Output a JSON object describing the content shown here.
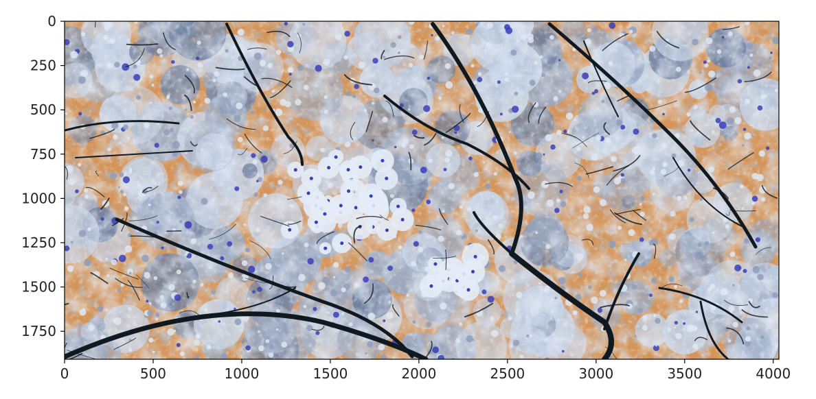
{
  "chart_data": {
    "type": "image",
    "title": "",
    "xlabel": "",
    "ylabel": "",
    "xlim": [
      0,
      4032
    ],
    "ylim": [
      1908,
      0
    ],
    "x_ticks": [
      0,
      500,
      1000,
      1500,
      2000,
      2500,
      3000,
      3500,
      4000
    ],
    "y_ticks": [
      0,
      250,
      500,
      750,
      1000,
      1250,
      1500,
      1750
    ],
    "x_tick_labels": [
      "0",
      "500",
      "1000",
      "1500",
      "2000",
      "2500",
      "3000",
      "3500",
      "4000"
    ],
    "y_tick_labels": [
      "0",
      "250",
      "500",
      "750",
      "1000",
      "1250",
      "1500",
      "1750"
    ],
    "image_content": "color-inverted photo of cherry blossom tree branches against sky",
    "grid": false,
    "colors": {
      "sky_inverted": "#d4955a",
      "blossom_light": "#c6d3e6",
      "blossom_shadow": "#6f809e",
      "blossom_accent": "#3a3fb8",
      "branch": "#101820"
    }
  }
}
